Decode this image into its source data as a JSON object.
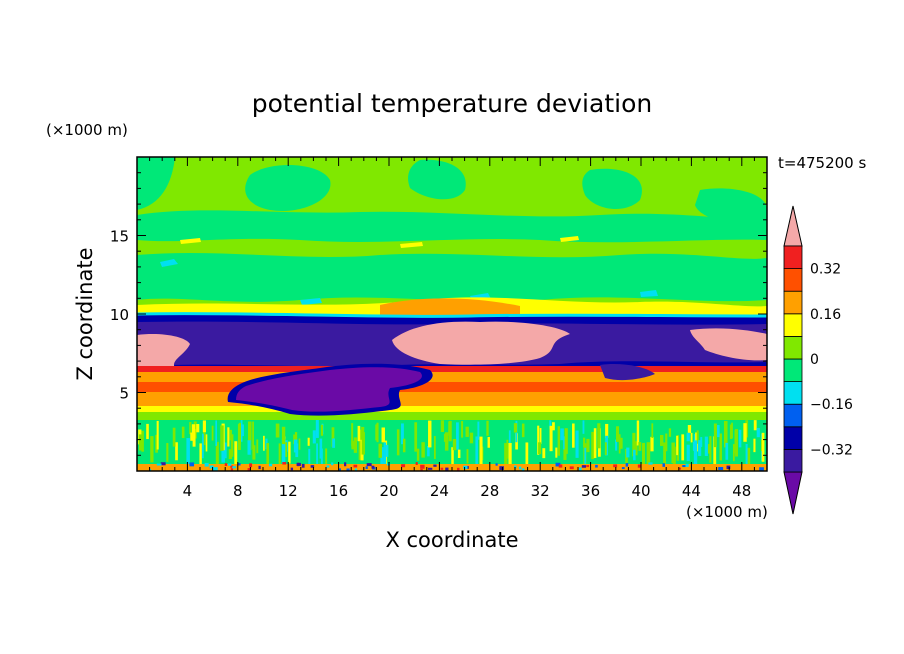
{
  "chart_data": {
    "type": "heatmap",
    "title": "potential temperature deviation",
    "time_label": "t=475200 s",
    "xlabel": "X coordinate",
    "ylabel": "Z coordinate",
    "x_unit": "(×1000 m)",
    "y_unit": "(×1000 m)",
    "xlim": [
      0,
      50
    ],
    "ylim": [
      0,
      20
    ],
    "x_ticks": [
      4,
      8,
      12,
      16,
      20,
      24,
      28,
      32,
      36,
      40,
      44,
      48
    ],
    "y_ticks": [
      5,
      10,
      15
    ],
    "colorbar": {
      "levels": [
        -0.4,
        -0.32,
        -0.24,
        -0.16,
        -0.08,
        0,
        0.08,
        0.16,
        0.24,
        0.32,
        0.4
      ],
      "labeled_values": [
        "0.32",
        "0.16",
        "0",
        "−0.16",
        "−0.32"
      ],
      "labeled_levels": [
        0.32,
        0.16,
        0,
        -0.16,
        -0.32
      ],
      "colors": [
        "#6a0aa6",
        "#3a1aa0",
        "#0000a8",
        "#0060f0",
        "#00e0f0",
        "#00e878",
        "#80e800",
        "#ffff00",
        "#ffa000",
        "#ff5000",
        "#f02020",
        "#f4a8a8"
      ],
      "extend": "both"
    },
    "regions": [
      {
        "x": [
          0,
          50
        ],
        "y": [
          15.5,
          20
        ],
        "level": 0.04
      },
      {
        "x": [
          0,
          50
        ],
        "y": [
          13,
          15.5
        ],
        "level": 0.06
      },
      {
        "x": [
          0,
          50
        ],
        "y": [
          11,
          13
        ],
        "level": 0.02
      },
      {
        "x": [
          0,
          50
        ],
        "y": [
          10,
          11
        ],
        "level": 0.2
      },
      {
        "x": [
          0,
          50
        ],
        "y": [
          8.5,
          10
        ],
        "level": -0.38
      },
      {
        "x": [
          0,
          4
        ],
        "y": [
          6.5,
          8.5
        ],
        "level": 0.44
      },
      {
        "x": 20,
        "y": [
          6.5,
          10
        ],
        "level": 0.44
      },
      {
        "x": [
          0,
          50
        ],
        "y": [
          6.6,
          6.9
        ],
        "level": 0.36
      },
      {
        "x": [
          0,
          50
        ],
        "y": [
          6,
          6.6
        ],
        "level": 0.2
      },
      {
        "x": [
          0,
          50
        ],
        "y": [
          5.5,
          6
        ],
        "level": 0.28
      },
      {
        "x": [
          0,
          50
        ],
        "y": [
          4.3,
          5.5
        ],
        "level": 0.2
      },
      {
        "x": [
          7,
          23
        ],
        "y": [
          3.5,
          6
        ],
        "level": -0.44
      },
      {
        "x": [
          0,
          50
        ],
        "y": [
          4,
          4.3
        ],
        "level": 0.1
      },
      {
        "x": [
          0,
          50
        ],
        "y": [
          0.3,
          3.5
        ],
        "level": 0.04
      },
      {
        "x": [
          0,
          50
        ],
        "y": [
          0,
          0.3
        ],
        "level": 0.2
      }
    ]
  }
}
